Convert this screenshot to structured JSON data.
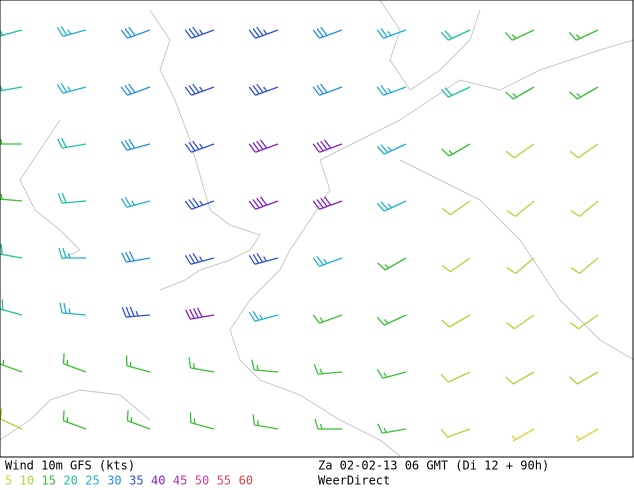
{
  "header": {
    "title": "Wind 10m GFS (kts)",
    "valid_time": "Za 02-02-13 06 GMT (Di 12 + 90h)",
    "source": "WeerDirect"
  },
  "legend": {
    "items": [
      {
        "value": 5,
        "color": "#d8d040"
      },
      {
        "value": 10,
        "color": "#a8d838"
      },
      {
        "value": 15,
        "color": "#38c038"
      },
      {
        "value": 20,
        "color": "#20c0a0"
      },
      {
        "value": 25,
        "color": "#20b0d0"
      },
      {
        "value": 30,
        "color": "#2090e0"
      },
      {
        "value": 35,
        "color": "#3050d0"
      },
      {
        "value": 40,
        "color": "#8020c0"
      },
      {
        "value": 45,
        "color": "#b030b0"
      },
      {
        "value": 50,
        "color": "#d040a0"
      },
      {
        "value": 55,
        "color": "#e04070"
      },
      {
        "value": 60,
        "color": "#e04040"
      }
    ]
  },
  "barbs": {
    "rows": [
      [
        {
          "speed": 20,
          "dir": 255
        },
        {
          "speed": 25,
          "dir": 255
        },
        {
          "speed": 30,
          "dir": 250
        },
        {
          "speed": 35,
          "dir": 250
        },
        {
          "speed": 35,
          "dir": 250
        },
        {
          "speed": 30,
          "dir": 250
        },
        {
          "speed": 25,
          "dir": 250
        },
        {
          "speed": 20,
          "dir": 245
        },
        {
          "speed": 15,
          "dir": 245
        },
        {
          "speed": 15,
          "dir": 245
        }
      ],
      [
        {
          "speed": 20,
          "dir": 260
        },
        {
          "speed": 25,
          "dir": 255
        },
        {
          "speed": 30,
          "dir": 250
        },
        {
          "speed": 35,
          "dir": 250
        },
        {
          "speed": 35,
          "dir": 250
        },
        {
          "speed": 30,
          "dir": 250
        },
        {
          "speed": 25,
          "dir": 250
        },
        {
          "speed": 20,
          "dir": 245
        },
        {
          "speed": 15,
          "dir": 240
        },
        {
          "speed": 15,
          "dir": 240
        }
      ],
      [
        {
          "speed": 15,
          "dir": 270
        },
        {
          "speed": 20,
          "dir": 260
        },
        {
          "speed": 30,
          "dir": 255
        },
        {
          "speed": 35,
          "dir": 250
        },
        {
          "speed": 40,
          "dir": 250
        },
        {
          "speed": 40,
          "dir": 250
        },
        {
          "speed": 25,
          "dir": 245
        },
        {
          "speed": 15,
          "dir": 240
        },
        {
          "speed": 10,
          "dir": 235
        },
        {
          "speed": 10,
          "dir": 235
        }
      ],
      [
        {
          "speed": 15,
          "dir": 275
        },
        {
          "speed": 20,
          "dir": 265
        },
        {
          "speed": 25,
          "dir": 255
        },
        {
          "speed": 35,
          "dir": 250
        },
        {
          "speed": 40,
          "dir": 250
        },
        {
          "speed": 40,
          "dir": 250
        },
        {
          "speed": 25,
          "dir": 245
        },
        {
          "speed": 10,
          "dir": 235
        },
        {
          "speed": 10,
          "dir": 230
        },
        {
          "speed": 10,
          "dir": 230
        }
      ],
      [
        {
          "speed": 20,
          "dir": 280
        },
        {
          "speed": 25,
          "dir": 270
        },
        {
          "speed": 30,
          "dir": 260
        },
        {
          "speed": 35,
          "dir": 255
        },
        {
          "speed": 35,
          "dir": 255
        },
        {
          "speed": 25,
          "dir": 250
        },
        {
          "speed": 15,
          "dir": 240
        },
        {
          "speed": 10,
          "dir": 235
        },
        {
          "speed": 10,
          "dir": 230
        },
        {
          "speed": 10,
          "dir": 230
        }
      ],
      [
        {
          "speed": 20,
          "dir": 285
        },
        {
          "speed": 25,
          "dir": 275
        },
        {
          "speed": 35,
          "dir": 265
        },
        {
          "speed": 40,
          "dir": 260
        },
        {
          "speed": 25,
          "dir": 255
        },
        {
          "speed": 15,
          "dir": 250
        },
        {
          "speed": 15,
          "dir": 245
        },
        {
          "speed": 10,
          "dir": 240
        },
        {
          "speed": 10,
          "dir": 235
        },
        {
          "speed": 10,
          "dir": 235
        }
      ],
      [
        {
          "speed": 15,
          "dir": 290
        },
        {
          "speed": 15,
          "dir": 290
        },
        {
          "speed": 15,
          "dir": 285
        },
        {
          "speed": 15,
          "dir": 280
        },
        {
          "speed": 15,
          "dir": 275
        },
        {
          "speed": 15,
          "dir": 265
        },
        {
          "speed": 15,
          "dir": 255
        },
        {
          "speed": 10,
          "dir": 245
        },
        {
          "speed": 10,
          "dir": 240
        },
        {
          "speed": 10,
          "dir": 240
        }
      ],
      [
        {
          "speed": 10,
          "dir": 295
        },
        {
          "speed": 15,
          "dir": 290
        },
        {
          "speed": 15,
          "dir": 290
        },
        {
          "speed": 15,
          "dir": 285
        },
        {
          "speed": 15,
          "dir": 280
        },
        {
          "speed": 15,
          "dir": 270
        },
        {
          "speed": 15,
          "dir": 260
        },
        {
          "speed": 10,
          "dir": 250
        },
        {
          "speed": 5,
          "dir": 240
        },
        {
          "speed": 5,
          "dir": 240
        }
      ]
    ]
  }
}
